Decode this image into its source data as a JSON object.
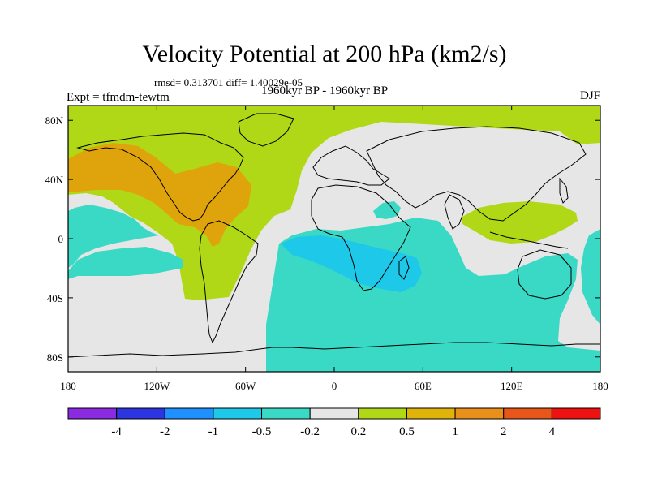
{
  "title": "Velocity Potential at 200 hPa (km2/s)",
  "stats": "rmsd= 0.313701 diff= 1.40029e-05",
  "period": "1960kyr BP - 1960kyr BP",
  "experiment": "Expt = tfmdm-tewtm",
  "season": "DJF",
  "map": {
    "lon_range": [
      -180,
      180
    ],
    "lat_range": [
      -90,
      90
    ],
    "lon_ticks": [
      -180,
      -120,
      -60,
      0,
      60,
      120,
      180
    ],
    "lon_tick_labels": [
      "180",
      "120W",
      "60W",
      "0",
      "60E",
      "120E",
      "180"
    ],
    "lat_ticks": [
      80,
      40,
      0,
      -40,
      -80
    ],
    "lat_tick_labels": [
      "80N",
      "40N",
      "0",
      "40S",
      "80S"
    ]
  },
  "colorbar": {
    "colors": [
      "#8a2be2",
      "#2d35e0",
      "#1e90ff",
      "#1ec8e8",
      "#3ad9c6",
      "#e6e6e6",
      "#b0d816",
      "#dfb30a",
      "#e8901a",
      "#e8561a",
      "#ee1111"
    ],
    "labels": [
      "-4",
      "-2",
      "-1",
      "-0.5",
      "-0.2",
      "0.2",
      "0.5",
      "1",
      "2",
      "4"
    ]
  },
  "colors": {
    "neutral": "#e6e6e6",
    "green": "#b0d816",
    "orange": "#dfa30c",
    "teal": "#3ad9c6",
    "blue": "#1ec8e8"
  }
}
